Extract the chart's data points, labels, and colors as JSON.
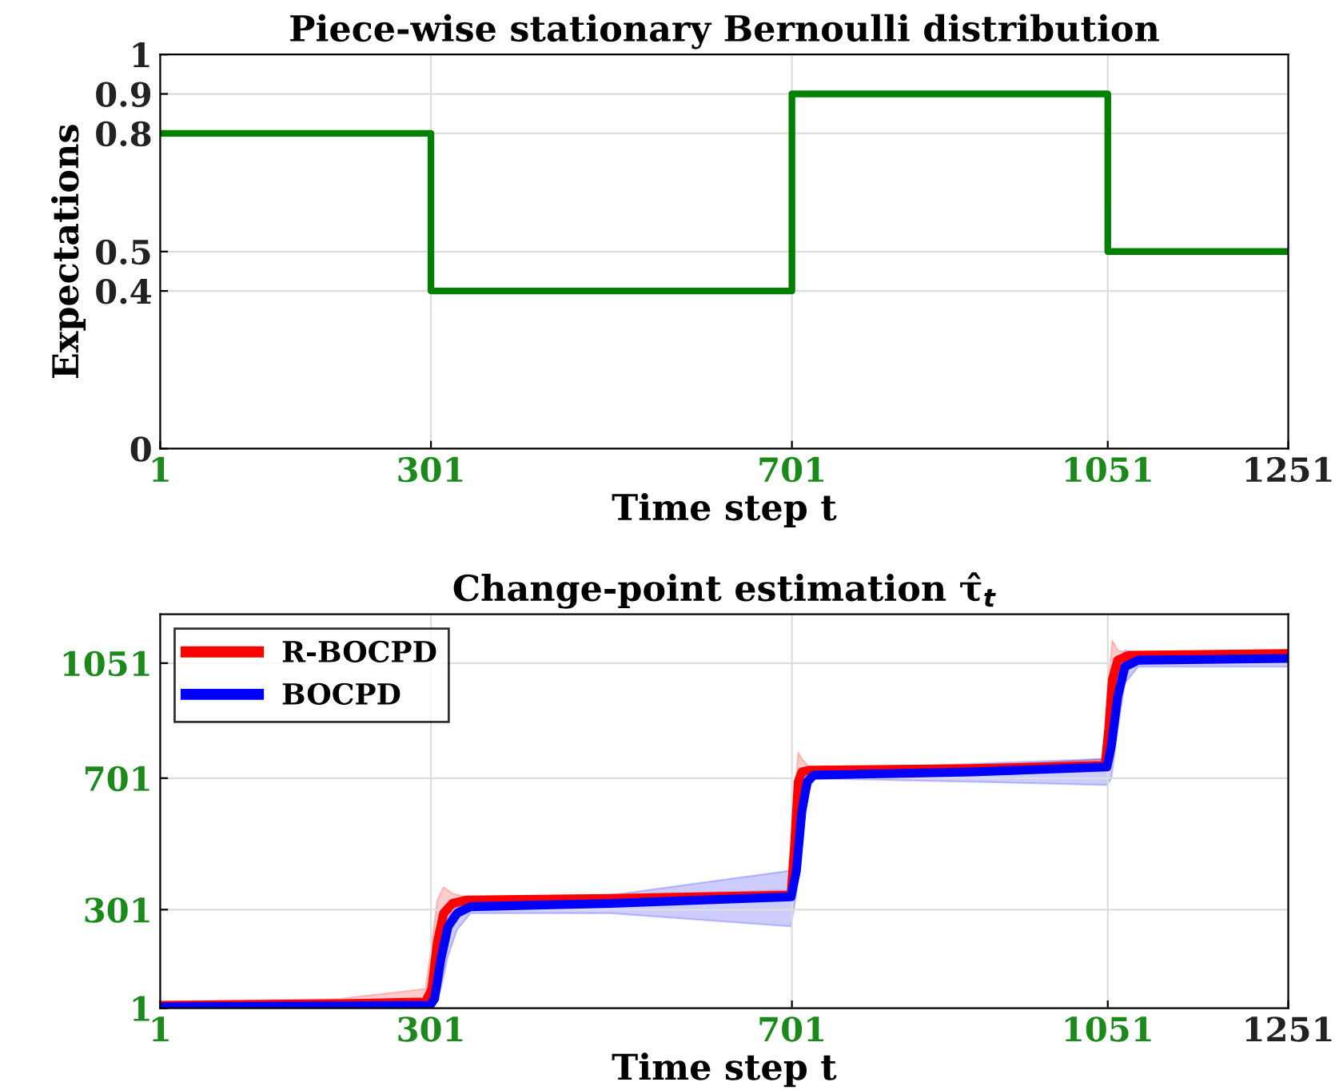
{
  "chart_data": [
    {
      "type": "step",
      "title": "Piece-wise stationary Bernoulli distribution",
      "xlabel": "Time step t",
      "ylabel": "Expectations",
      "xlim": [
        1,
        1251
      ],
      "xticks": [
        1,
        301,
        701,
        1051,
        1251
      ],
      "ylim": [
        0,
        1
      ],
      "yticks": [
        0,
        0.4,
        0.5,
        0.8,
        0.9,
        1
      ],
      "grid": true,
      "series": [
        {
          "color": "#008000",
          "x": [
            1,
            301,
            701,
            1051,
            1251
          ],
          "values": [
            0.8,
            0.4,
            0.9,
            0.5,
            0.5
          ]
        }
      ]
    },
    {
      "type": "line",
      "title": "Change-point estimation τ̂$_{t}$",
      "xlabel": "Time step t",
      "xlim": [
        1,
        1251
      ],
      "xticks": [
        1,
        301,
        701,
        1051,
        1251
      ],
      "ylim": [
        1,
        1200
      ],
      "yticks": [
        1,
        301,
        701,
        1051
      ],
      "grid": true,
      "legend": "top left",
      "series": [
        {
          "name": "R-BOCPD",
          "color": "#ff0000",
          "x": [
            1,
            200,
            295,
            302,
            308,
            315,
            325,
            340,
            500,
            700,
            704,
            708,
            712,
            720,
            900,
            1048,
            1052,
            1056,
            1062,
            1075,
            1251
          ],
          "values": [
            10,
            15,
            20,
            60,
            200,
            290,
            320,
            330,
            335,
            345,
            500,
            690,
            720,
            725,
            730,
            740,
            850,
            1000,
            1060,
            1075,
            1080
          ],
          "lower": [
            1,
            5,
            10,
            20,
            100,
            230,
            300,
            320,
            330,
            335,
            400,
            600,
            700,
            715,
            725,
            730,
            750,
            900,
            1030,
            1070,
            1075
          ],
          "upper": [
            20,
            30,
            60,
            200,
            330,
            370,
            350,
            340,
            345,
            360,
            650,
            780,
            760,
            735,
            735,
            760,
            1000,
            1120,
            1090,
            1080,
            1085
          ]
        },
        {
          "name": "BOCPD",
          "color": "#0000ff",
          "x": [
            1,
            200,
            300,
            305,
            312,
            320,
            330,
            345,
            500,
            700,
            706,
            712,
            718,
            725,
            900,
            1050,
            1055,
            1062,
            1070,
            1085,
            1251
          ],
          "values": [
            5,
            8,
            10,
            30,
            150,
            250,
            290,
            310,
            320,
            340,
            420,
            600,
            690,
            710,
            720,
            735,
            800,
            950,
            1040,
            1060,
            1065
          ],
          "lower": [
            1,
            2,
            3,
            10,
            60,
            160,
            240,
            290,
            290,
            250,
            350,
            520,
            650,
            700,
            690,
            680,
            700,
            850,
            990,
            1040,
            1040
          ],
          "upper": [
            15,
            20,
            25,
            80,
            240,
            320,
            320,
            320,
            345,
            420,
            500,
            680,
            720,
            720,
            745,
            760,
            900,
            1050,
            1090,
            1080,
            1085
          ]
        }
      ]
    }
  ]
}
